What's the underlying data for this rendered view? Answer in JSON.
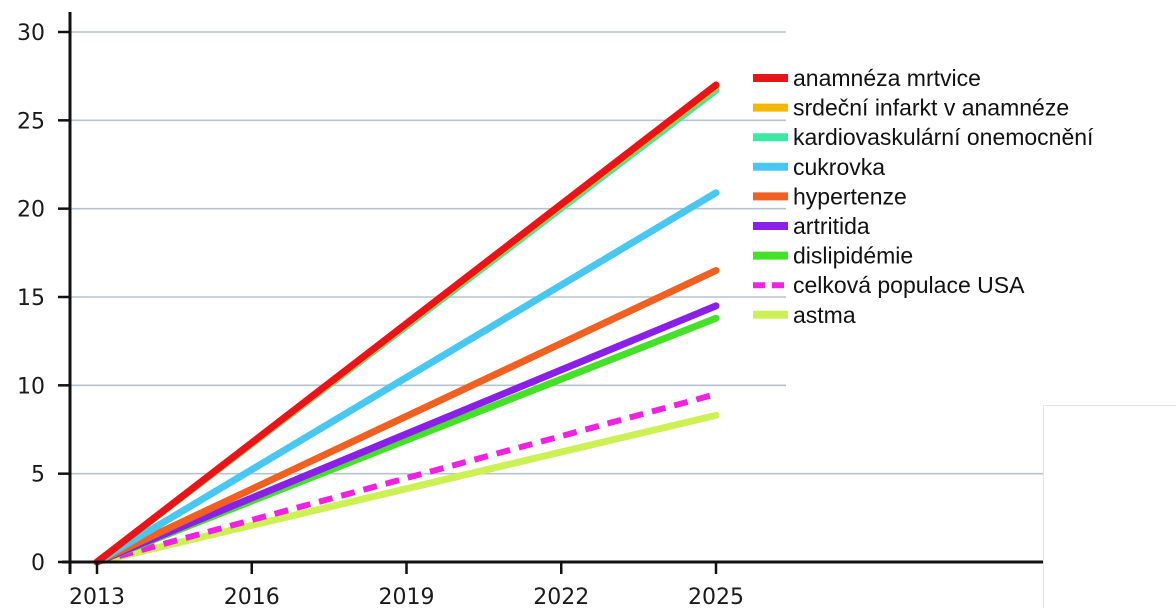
{
  "chart_data": {
    "type": "line",
    "title": "",
    "xlabel": "",
    "ylabel": "",
    "x_ticks": [
      "2013",
      "2016",
      "2019",
      "2022",
      "2025"
    ],
    "y_ticks": [
      0,
      5,
      10,
      15,
      20,
      25,
      30
    ],
    "xlim": [
      2013,
      2025
    ],
    "ylim": [
      0,
      30
    ],
    "grid": "horizontal",
    "legend_position": "right",
    "x": [
      2013,
      2025
    ],
    "series": [
      {
        "name": "anamnéza mrtvice",
        "values": [
          0,
          27.0
        ],
        "color": "#e8141a",
        "dash": false
      },
      {
        "name": "srdeční infarkt v anamnéze",
        "values": [
          0,
          26.9
        ],
        "color": "#f5b800",
        "dash": false
      },
      {
        "name": "kardiovaskulární onemocnění",
        "values": [
          0,
          26.7
        ],
        "color": "#3de8a6",
        "dash": false
      },
      {
        "name": "cukrovka",
        "values": [
          0,
          20.9
        ],
        "color": "#48c8f0",
        "dash": false
      },
      {
        "name": "hypertenze",
        "values": [
          0,
          16.5
        ],
        "color": "#f06020",
        "dash": false
      },
      {
        "name": "artritida",
        "values": [
          0,
          14.5
        ],
        "color": "#8a20e8",
        "dash": false
      },
      {
        "name": "dislipidémie",
        "values": [
          0,
          13.8
        ],
        "color": "#44e02a",
        "dash": false
      },
      {
        "name": "celková populace USA",
        "values": [
          0,
          9.5
        ],
        "color": "#ee22e0",
        "dash": true
      },
      {
        "name": "astma",
        "values": [
          0,
          8.3
        ],
        "color": "#cdf055",
        "dash": false
      }
    ]
  }
}
